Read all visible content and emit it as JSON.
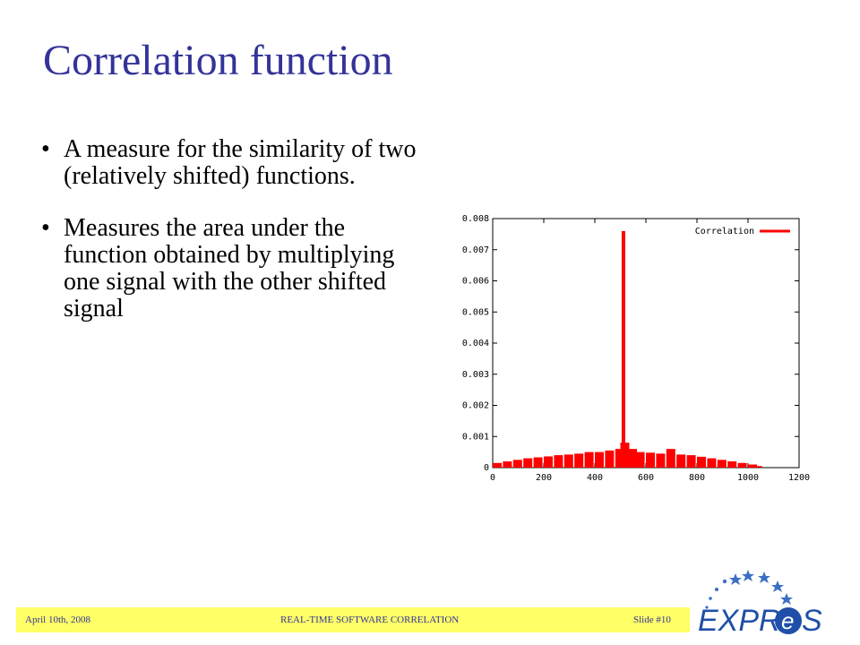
{
  "slide": {
    "title": "Correlation function",
    "bullets": [
      "A measure for the similarity of two (relatively shifted) functions.",
      "Measures the area under the function obtained by multiplying one signal with the other shifted signal"
    ]
  },
  "footer": {
    "date": "April 10th, 2008",
    "center": "REAL-TIME SOFTWARE CORRELATION",
    "slide_number": "Slide #10"
  },
  "logo": {
    "text_left": "EXPR",
    "text_e": "e",
    "text_right": "S",
    "colors": {
      "blue": "#1f4fa8",
      "stars": "#3b6fc4"
    }
  },
  "colors": {
    "title": "#333399",
    "footer_bar": "#ffff66",
    "series": "#ff0000"
  },
  "chart_data": {
    "type": "bar",
    "legend": [
      "Correlation"
    ],
    "legend_position": "top-right",
    "xlim": [
      0,
      1200
    ],
    "ylim": [
      0,
      0.008
    ],
    "x_ticks": [
      "0",
      "200",
      "400",
      "600",
      "800",
      "1000",
      "1200"
    ],
    "y_ticks": [
      "0",
      "0.001",
      "0.002",
      "0.003",
      "0.004",
      "0.005",
      "0.006",
      "0.007",
      "0.008"
    ],
    "series": [
      {
        "name": "Correlation",
        "color": "#ff0000",
        "points": [
          {
            "x": 0,
            "y": 0.00015
          },
          {
            "x": 40,
            "y": 0.0002
          },
          {
            "x": 80,
            "y": 0.00025
          },
          {
            "x": 120,
            "y": 0.0003
          },
          {
            "x": 160,
            "y": 0.00033
          },
          {
            "x": 200,
            "y": 0.00036
          },
          {
            "x": 240,
            "y": 0.0004
          },
          {
            "x": 280,
            "y": 0.00042
          },
          {
            "x": 320,
            "y": 0.00045
          },
          {
            "x": 360,
            "y": 0.0005
          },
          {
            "x": 400,
            "y": 0.0005
          },
          {
            "x": 440,
            "y": 0.00055
          },
          {
            "x": 480,
            "y": 0.0006
          },
          {
            "x": 500,
            "y": 0.0008
          },
          {
            "x": 512,
            "y": 0.0076
          },
          {
            "x": 530,
            "y": 0.0006
          },
          {
            "x": 560,
            "y": 0.0005
          },
          {
            "x": 600,
            "y": 0.00048
          },
          {
            "x": 640,
            "y": 0.00045
          },
          {
            "x": 680,
            "y": 0.0006
          },
          {
            "x": 720,
            "y": 0.00042
          },
          {
            "x": 760,
            "y": 0.0004
          },
          {
            "x": 800,
            "y": 0.00035
          },
          {
            "x": 840,
            "y": 0.0003
          },
          {
            "x": 880,
            "y": 0.00025
          },
          {
            "x": 920,
            "y": 0.0002
          },
          {
            "x": 960,
            "y": 0.00015
          },
          {
            "x": 1000,
            "y": 0.0001
          },
          {
            "x": 1020,
            "y": 5e-05
          }
        ]
      }
    ]
  }
}
